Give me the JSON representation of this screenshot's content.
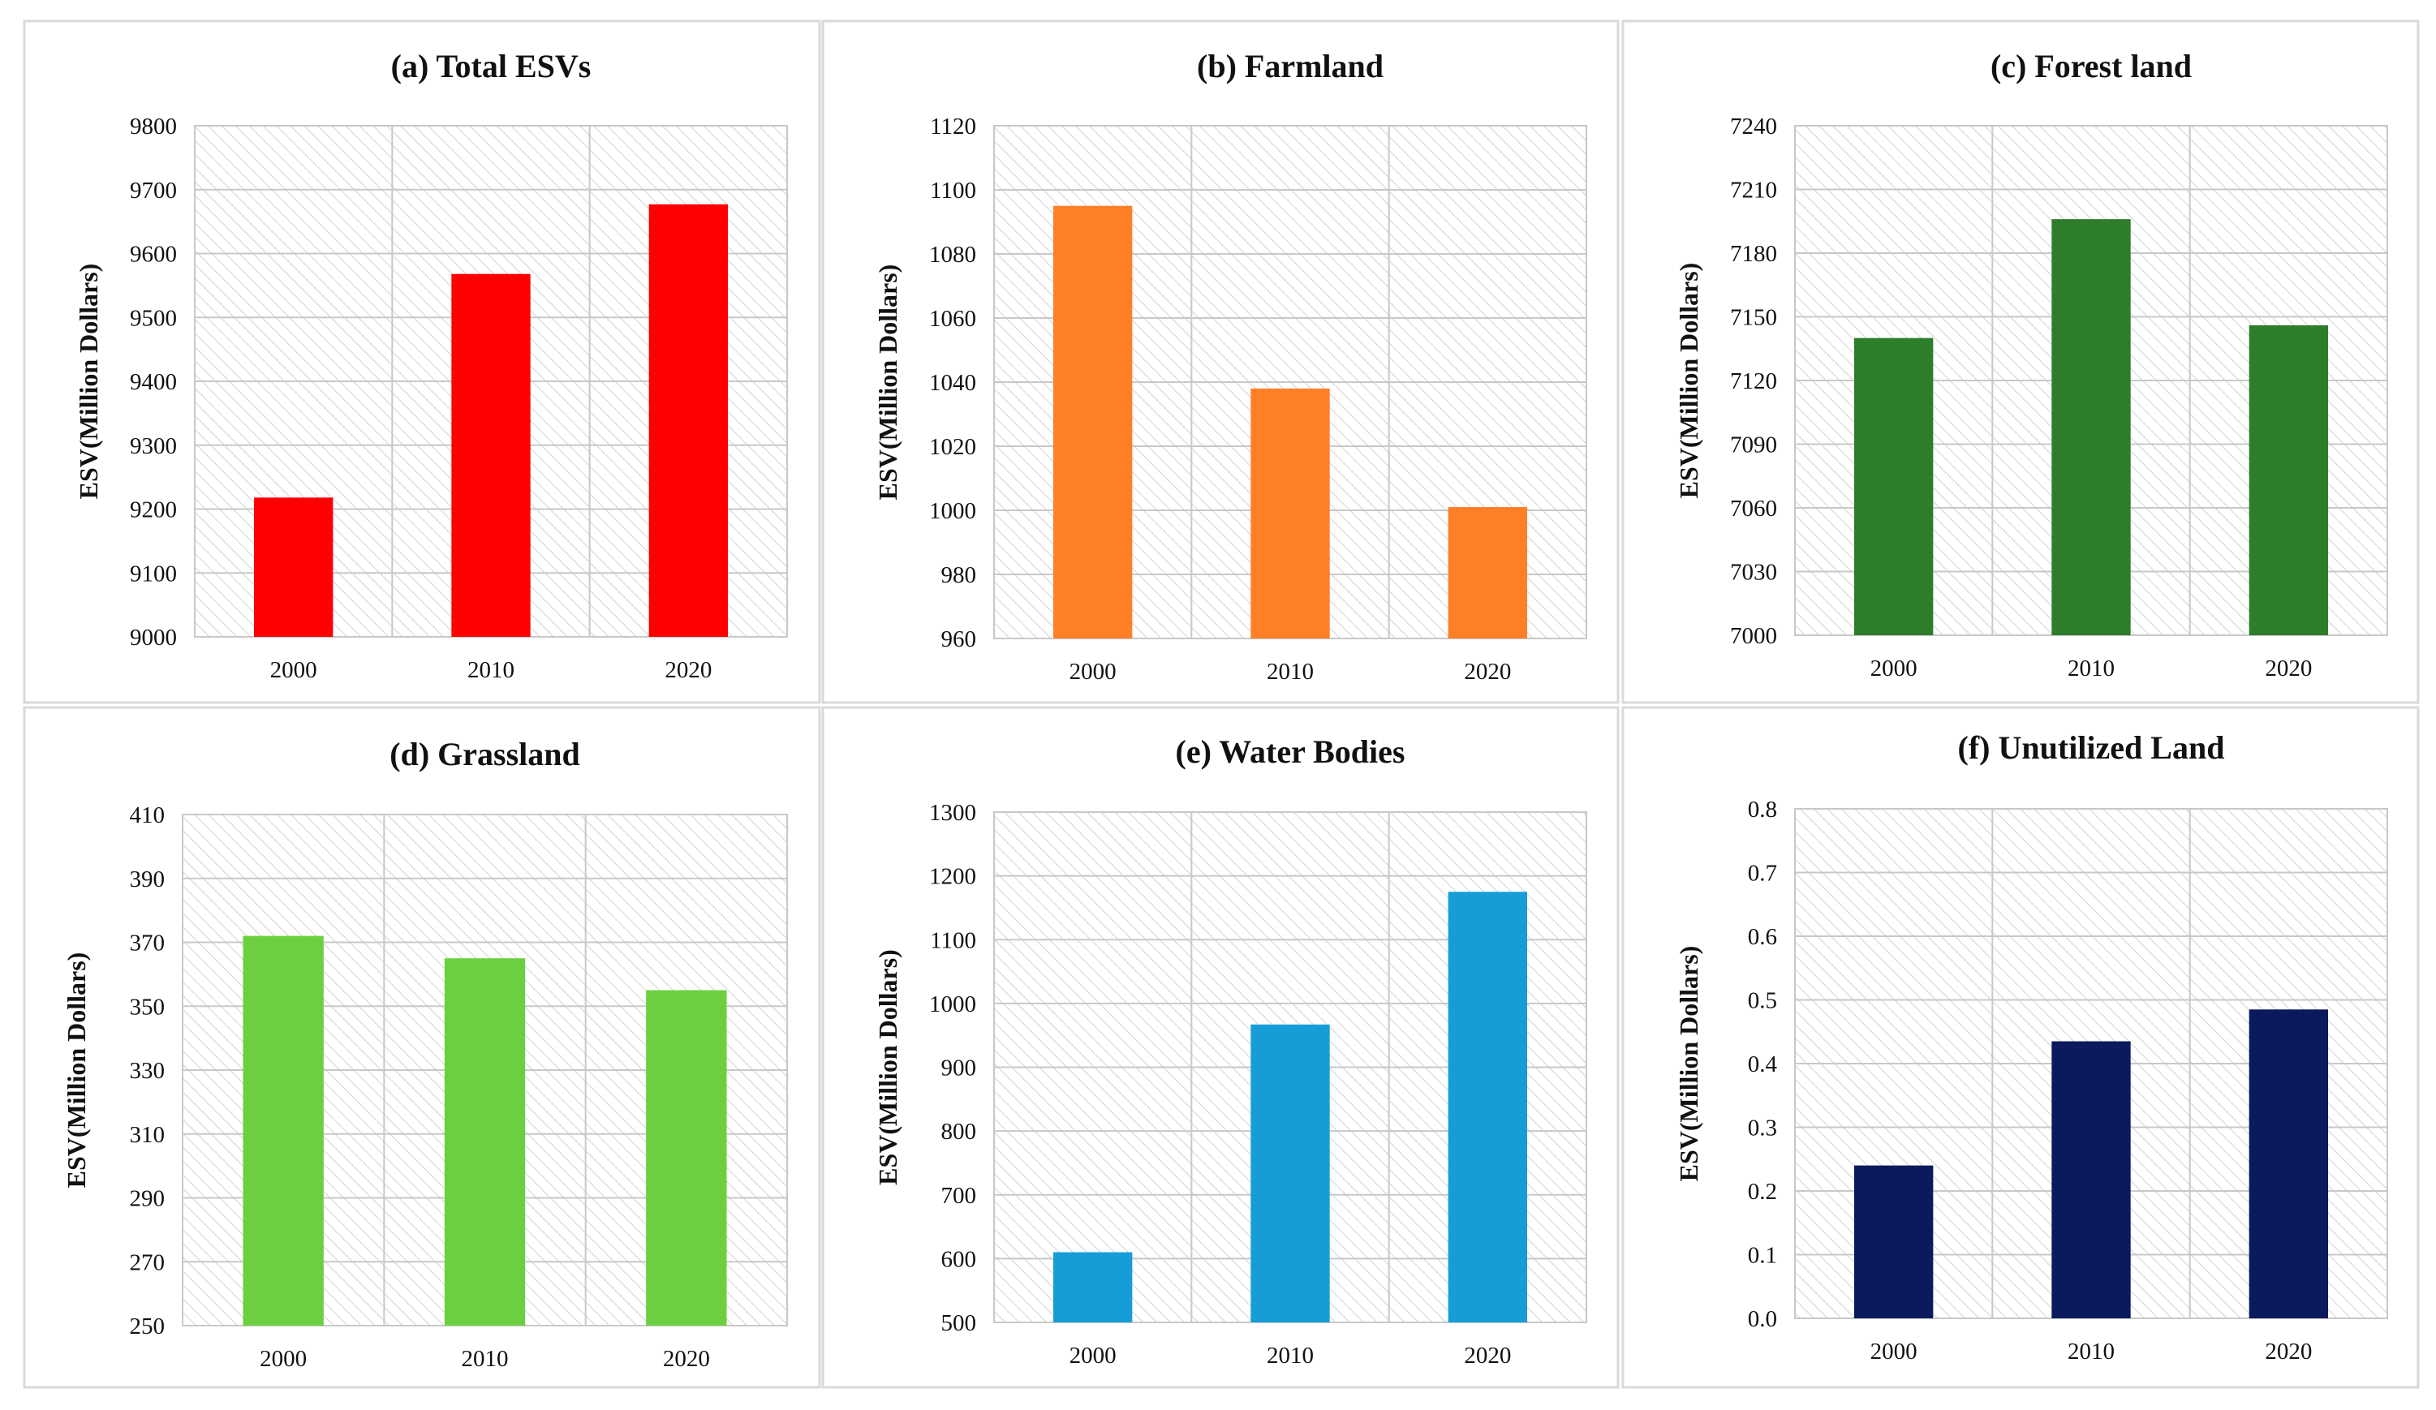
{
  "chart_data": [
    {
      "type": "bar",
      "title": "(a) Total ESVs",
      "xlabel": "",
      "ylabel": "ESV(Million Dollars)",
      "categories": [
        "2000",
        "2010",
        "2020"
      ],
      "values": [
        9218,
        9568,
        9677
      ],
      "ylim": [
        9000,
        9800
      ],
      "ytick_step": 100,
      "ytick_decimals": 0,
      "bar_color": "#ff0000",
      "grid": true
    },
    {
      "type": "bar",
      "title": "(b) Farmland",
      "xlabel": "",
      "ylabel": "ESV(Million Dollars)",
      "categories": [
        "2000",
        "2010",
        "2020"
      ],
      "values": [
        1095,
        1038,
        1001
      ],
      "ylim": [
        960,
        1120
      ],
      "ytick_step": 20,
      "ytick_decimals": 0,
      "bar_color": "#ff7f27",
      "grid": true
    },
    {
      "type": "bar",
      "title": "(c) Forest land",
      "xlabel": "",
      "ylabel": "ESV(Million Dollars)",
      "categories": [
        "2000",
        "2010",
        "2020"
      ],
      "values": [
        7140,
        7196,
        7146
      ],
      "ylim": [
        7000,
        7240
      ],
      "ytick_step": 30,
      "ytick_decimals": 0,
      "bar_color": "#2e7d2a",
      "grid": true
    },
    {
      "type": "bar",
      "title": "(d) Grassland",
      "xlabel": "",
      "ylabel": "ESV(Million Dollars)",
      "categories": [
        "2000",
        "2010",
        "2020"
      ],
      "values": [
        372,
        365,
        355
      ],
      "ylim": [
        250,
        410
      ],
      "ytick_step": 20,
      "ytick_decimals": 0,
      "bar_color": "#6ccf3f",
      "grid": true
    },
    {
      "type": "bar",
      "title": "(e) Water Bodies",
      "xlabel": "",
      "ylabel": "ESV(Million Dollars)",
      "categories": [
        "2000",
        "2010",
        "2020"
      ],
      "values": [
        610,
        967,
        1175
      ],
      "ylim": [
        500,
        1300
      ],
      "ytick_step": 100,
      "ytick_decimals": 0,
      "bar_color": "#169dd8",
      "grid": true
    },
    {
      "type": "bar",
      "title": "(f) Unutilized Land",
      "xlabel": "",
      "ylabel": "ESV(Million Dollars)",
      "categories": [
        "2000",
        "2010",
        "2020"
      ],
      "values": [
        0.24,
        0.435,
        0.485
      ],
      "ylim": [
        0,
        0.8
      ],
      "ytick_step": 0.1,
      "ytick_decimals": 1,
      "bar_color": "#0a1a5c",
      "grid": true
    }
  ]
}
